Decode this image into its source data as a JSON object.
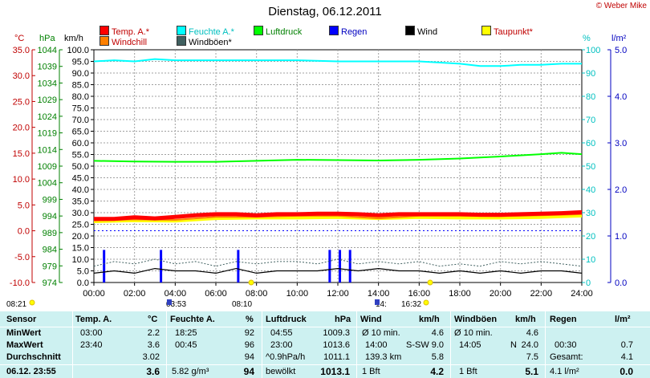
{
  "title": "Dienstag, 06.12.2011",
  "credit": "© Weber Mike",
  "legend": [
    {
      "label": "Temp. A.*",
      "color": "#ff0000"
    },
    {
      "label": "Feuchte A.*",
      "color": "#00ffff"
    },
    {
      "label": "Luftdruck",
      "color": "#00ff00"
    },
    {
      "label": "Regen",
      "color": "#0000ff"
    },
    {
      "label": "Wind",
      "color": "#000000"
    },
    {
      "label": "Taupunkt*",
      "color": "#ffff00"
    },
    {
      "label": "Windchill",
      "color": "#ff8000"
    },
    {
      "label": "Windböen*",
      "color": "#406060"
    }
  ],
  "axis_units": {
    "temp": "°C",
    "pressure": "hPa",
    "wind": "km/h",
    "humidity": "%",
    "rain": "l/m²"
  },
  "chart_data": {
    "type": "line",
    "x": [
      "00:00",
      "02:00",
      "04:00",
      "06:00",
      "08:00",
      "10:00",
      "12:00",
      "14:00",
      "16:00",
      "18:00",
      "20:00",
      "22:00",
      "24:00"
    ],
    "axes": {
      "temp_c": {
        "range": [
          -10,
          35
        ],
        "ticks": [
          "35.0",
          "30.0",
          "25.0",
          "20.0",
          "15.0",
          "10.0",
          "5.0",
          "0.0",
          "-5.0",
          "-10.0"
        ]
      },
      "pressure_hpa": {
        "range": [
          974,
          1044
        ],
        "ticks": [
          "1044",
          "1039",
          "1034",
          "1029",
          "1024",
          "1019",
          "1014",
          "1009",
          "1004",
          "999",
          "994",
          "989",
          "984",
          "979",
          "974"
        ]
      },
      "wind_kmh": {
        "range": [
          0,
          100
        ],
        "ticks": [
          "100.0",
          "95.0",
          "90.0",
          "85.0",
          "80.0",
          "75.0",
          "70.0",
          "65.0",
          "60.0",
          "55.0",
          "50.0",
          "45.0",
          "40.0",
          "35.0",
          "30.0",
          "25.0",
          "20.0",
          "15.0",
          "10.0",
          "5.0",
          "0.0"
        ]
      },
      "humidity_pct": {
        "range": [
          0,
          100
        ],
        "ticks": [
          "100",
          "90",
          "80",
          "70",
          "60",
          "50",
          "40",
          "30",
          "20",
          "10",
          "0"
        ]
      },
      "rain_lm2": {
        "range": [
          0,
          5
        ],
        "ticks": [
          "5.0",
          "4.0",
          "3.0",
          "2.0",
          "1.0",
          "0.0"
        ]
      }
    },
    "series": [
      {
        "name": "Temp. A.*",
        "color": "#ff0000",
        "axis": "temp_c",
        "x": [
          0,
          1,
          2,
          3,
          4,
          5,
          6,
          7,
          8,
          9,
          10,
          11,
          12,
          13,
          14,
          15,
          16,
          17,
          18,
          19,
          20,
          21,
          22,
          23,
          24
        ],
        "y": [
          2.3,
          2.3,
          2.6,
          2.4,
          2.7,
          3.0,
          3.2,
          3.2,
          3.0,
          3.2,
          3.2,
          3.3,
          3.3,
          3.2,
          3.0,
          3.2,
          3.2,
          3.2,
          3.2,
          3.1,
          3.1,
          3.2,
          3.3,
          3.4,
          3.6
        ]
      },
      {
        "name": "Taupunkt*",
        "color": "#ffff00",
        "axis": "temp_c",
        "x": [
          0,
          2,
          4,
          6,
          8,
          10,
          12,
          14,
          16,
          18,
          20,
          22,
          24
        ],
        "y": [
          1.8,
          2.0,
          1.9,
          2.4,
          2.5,
          2.5,
          2.6,
          2.4,
          2.6,
          2.5,
          2.5,
          2.6,
          2.9
        ]
      },
      {
        "name": "Windchill",
        "color": "#ff8000",
        "axis": "temp_c",
        "x": [
          0,
          2,
          4,
          6,
          8,
          10,
          12,
          14,
          16,
          18,
          20,
          22,
          24
        ],
        "y": [
          2.0,
          2.2,
          2.1,
          2.7,
          2.7,
          2.9,
          2.9,
          2.4,
          2.9,
          2.9,
          2.8,
          3.0,
          3.2
        ]
      },
      {
        "name": "Feuchte A.*",
        "color": "#00ffff",
        "axis": "humidity_pct",
        "x": [
          0,
          1,
          2,
          3,
          4,
          6,
          8,
          10,
          12,
          14,
          16,
          18,
          19,
          20,
          21,
          22,
          23,
          24
        ],
        "y": [
          95,
          95.5,
          95,
          96,
          95.5,
          95.5,
          95.5,
          95.5,
          95,
          95,
          95,
          94,
          93,
          93,
          93.5,
          93.5,
          94,
          94
        ]
      },
      {
        "name": "Luftdruck",
        "color": "#00ff00",
        "axis": "pressure_hpa",
        "x": [
          0,
          2,
          4,
          6,
          8,
          10,
          12,
          14,
          16,
          18,
          20,
          22,
          23,
          24
        ],
        "y": [
          1010.6,
          1010.4,
          1010.3,
          1010.3,
          1010.6,
          1010.9,
          1010.8,
          1010.7,
          1010.9,
          1011.3,
          1011.9,
          1012.6,
          1013.0,
          1012.6
        ]
      },
      {
        "name": "Wind",
        "color": "#000000",
        "axis": "wind_kmh",
        "x": [
          0,
          1,
          2,
          3,
          4,
          5,
          6,
          7,
          8,
          9,
          10,
          11,
          12,
          13,
          14,
          15,
          16,
          17,
          18,
          19,
          20,
          21,
          22,
          23,
          24
        ],
        "y": [
          4,
          5,
          4,
          6,
          5,
          5,
          4,
          6,
          4,
          5,
          5,
          5,
          6,
          5,
          6,
          5,
          5,
          4,
          5,
          4,
          5,
          4,
          5,
          5,
          4
        ]
      },
      {
        "name": "Windböen*",
        "color": "#406060",
        "axis": "wind_kmh",
        "x": [
          0,
          1,
          2,
          3,
          4,
          5,
          6,
          7,
          8,
          9,
          10,
          11,
          12,
          13,
          14,
          15,
          16,
          17,
          18,
          19,
          20,
          21,
          22,
          23,
          24
        ],
        "y": [
          7,
          9,
          8,
          10,
          8,
          9,
          7,
          9,
          8,
          9,
          9,
          8,
          10,
          8,
          9,
          8,
          9,
          7,
          8,
          7,
          9,
          8,
          9,
          8,
          7
        ]
      }
    ],
    "rain_bars": {
      "name": "Regen",
      "color": "#0000ff",
      "axis": "rain_lm2",
      "x": [
        0.5,
        3.3,
        7.1,
        11.6,
        12.1,
        12.6
      ],
      "y": [
        0.7,
        0.7,
        0.7,
        0.7,
        0.7,
        0.7
      ]
    },
    "reference_line": {
      "axis": "temp_c",
      "value": 0,
      "style": "dotted",
      "color": "#0000ff"
    },
    "grid": true
  },
  "astro": [
    {
      "label": "08:21",
      "kind": "sunrise"
    },
    {
      "label": "03:53",
      "kind": "moonset"
    },
    {
      "label": "08:10",
      "kind": "sunrise"
    },
    {
      "label": "14:",
      "kind": "moonrise"
    },
    {
      "label": "16:32",
      "kind": "sunset"
    }
  ],
  "stats": {
    "rowlabels": {
      "header": "Sensor",
      "min": "MinWert",
      "max": "MaxWert",
      "avg": "Durchschnitt",
      "now": "06.12. 23:55"
    },
    "temp": {
      "title": "Temp. A.",
      "unit": "°C",
      "min_t": "03:00",
      "min_v": "2.2",
      "max_t": "23:40",
      "max_v": "3.6",
      "avg_v": "3.02",
      "now_v": "3.6"
    },
    "hum": {
      "title": "Feuchte A.",
      "unit": "%",
      "min_t": "18:25",
      "min_v": "92",
      "max_t": "00:45",
      "max_v": "96",
      "avg_v": "94",
      "now_a": "5.82 g/m³",
      "now_v": "94"
    },
    "press": {
      "title": "Luftdruck",
      "unit": "hPa",
      "min_t": "04:55",
      "min_v": "1009.3",
      "max_t": "23:00",
      "max_v": "1013.6",
      "avg_t": "^0.9hPa/h",
      "avg_v": "1011.1",
      "now_a": "bewölkt",
      "now_v": "1013.1"
    },
    "wind": {
      "title": "Wind",
      "unit": "km/h",
      "min_t": "Ø 10 min.",
      "min_v": "4.6",
      "max_t": "14:00",
      "max_m": "S-SW",
      "max_v": "9.0",
      "avg_t": "139.3 km",
      "avg_v": "5.8",
      "now_a": "1 Bft",
      "now_v": "4.2"
    },
    "gust": {
      "title": "Windböen",
      "unit": "km/h",
      "min_t": "Ø 10 min.",
      "min_v": "4.6",
      "max_t": "14:05",
      "max_m": "N",
      "max_v": "24.0",
      "avg_v": "7.5",
      "now_a": "1 Bft",
      "now_v": "5.1"
    },
    "rain": {
      "title": "Regen",
      "unit": "l/m²",
      "max_t": "00:30",
      "max_v": "0.7",
      "avg_t": "Gesamt:",
      "avg_v": "4.1",
      "now_a": "4.1 l/m²",
      "now_v": "0.0"
    }
  }
}
